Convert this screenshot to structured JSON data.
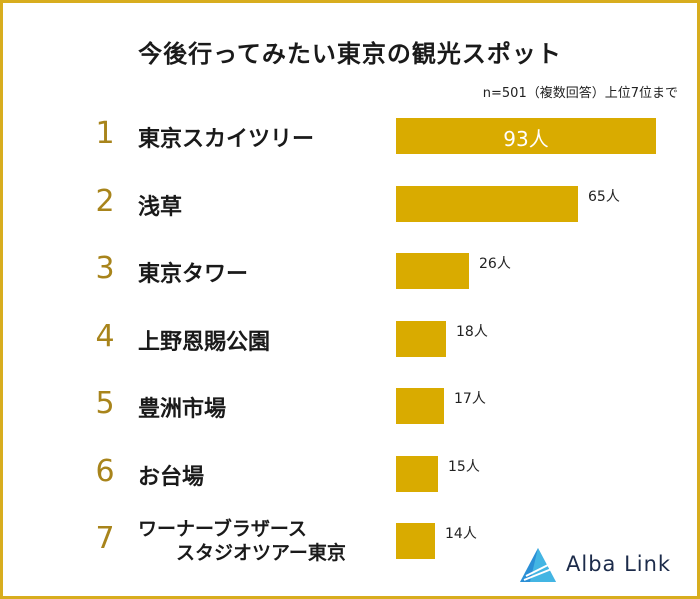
{
  "chart_data": {
    "type": "bar",
    "orientation": "horizontal",
    "title": "今後行ってみたい東京の観光スポット",
    "subtitle": "n=501（複数回答）上位7位まで",
    "categories": [
      "東京スカイツリー",
      "浅草",
      "東京タワー",
      "上野恩賜公園",
      "豊洲市場",
      "お台場",
      "ワーナーブラザース スタジオツアー東京"
    ],
    "ranks": [
      "1",
      "2",
      "3",
      "4",
      "5",
      "6",
      "7"
    ],
    "values": [
      93,
      65,
      26,
      18,
      17,
      15,
      14
    ],
    "value_labels": [
      "93人",
      "65人",
      "26人",
      "18人",
      "17人",
      "15人",
      "14人"
    ],
    "label_line1": [
      "東京スカイツリー",
      "浅草",
      "東京タワー",
      "上野恩賜公園",
      "豊洲市場",
      "お台場",
      "ワーナーブラザース"
    ],
    "label_line2": [
      "",
      "",
      "",
      "",
      "",
      "",
      "スタジオツアー東京"
    ],
    "bar_color": "#d9ab00",
    "rank_color": "#a8841b",
    "border_color": "#d8ad1e",
    "grid": false,
    "legend": false
  },
  "brand": {
    "name": "Alba Link",
    "logo_colors": [
      "#2a8fd6",
      "#4fc4e8",
      "#1c2b4a"
    ]
  }
}
